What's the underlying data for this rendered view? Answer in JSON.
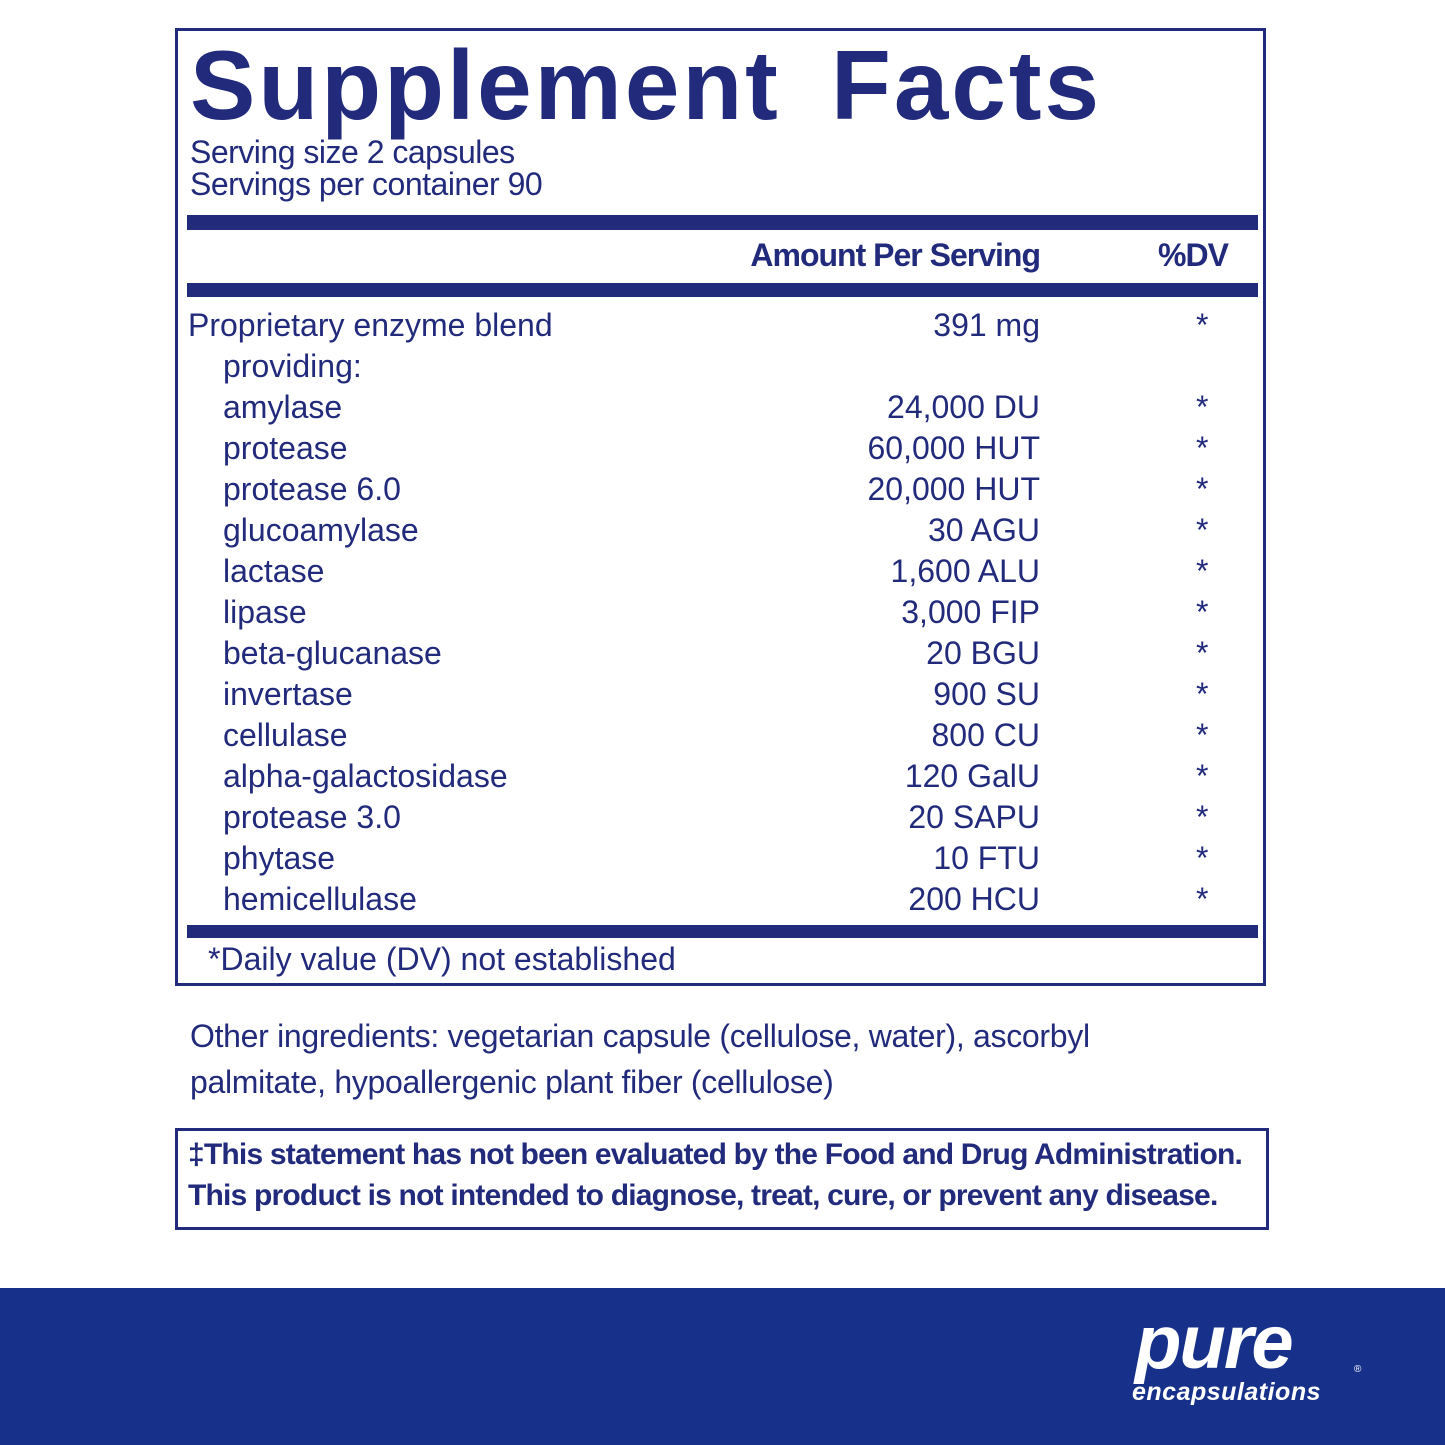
{
  "title": "Supplement Facts",
  "serving_size": "Serving size  2 capsules",
  "servings_per_container": "Servings per container  90",
  "header": {
    "amount": "Amount Per Serving",
    "dv": "%DV"
  },
  "rows": [
    {
      "name": "Proprietary enzyme blend",
      "amount": "391 mg",
      "dv": "*"
    },
    {
      "name": "providing:",
      "amount": "",
      "dv": ""
    },
    {
      "name": "amylase",
      "amount": "24,000 DU",
      "dv": "*"
    },
    {
      "name": "protease",
      "amount": "60,000 HUT",
      "dv": "*"
    },
    {
      "name": "protease 6.0",
      "amount": "20,000 HUT",
      "dv": "*"
    },
    {
      "name": "glucoamylase",
      "amount": "30 AGU",
      "dv": "*"
    },
    {
      "name": "lactase",
      "amount": "1,600 ALU",
      "dv": "*"
    },
    {
      "name": "lipase",
      "amount": "3,000 FIP",
      "dv": "*"
    },
    {
      "name": "beta-glucanase",
      "amount": "20 BGU",
      "dv": "*"
    },
    {
      "name": "invertase",
      "amount": "900 SU",
      "dv": "*"
    },
    {
      "name": "cellulase",
      "amount": "800 CU",
      "dv": "*"
    },
    {
      "name": "alpha-galactosidase",
      "amount": "120 GalU",
      "dv": "*"
    },
    {
      "name": "protease 3.0",
      "amount": "20 SAPU",
      "dv": "*"
    },
    {
      "name": "phytase",
      "amount": "10 FTU",
      "dv": "*"
    },
    {
      "name": "hemicellulase",
      "amount": "200 HCU",
      "dv": "*"
    }
  ],
  "footnote": "*Daily value (DV) not established",
  "other_ingredients": "Other ingredients: vegetarian capsule (cellulose, water), ascorbyl palmitate, hypoallergenic plant fiber (cellulose)",
  "disclaimer": {
    "line1": "‡This statement has not been evaluated by the Food and Drug Administration.",
    "line2": "This product is not intended to diagnose, treat, cure, or prevent any disease."
  },
  "logo": {
    "pure": "pure",
    "encapsulations": "encapsulations",
    "registered": "®"
  },
  "colors": {
    "text": "#222a7c",
    "banner": "#17318a"
  }
}
